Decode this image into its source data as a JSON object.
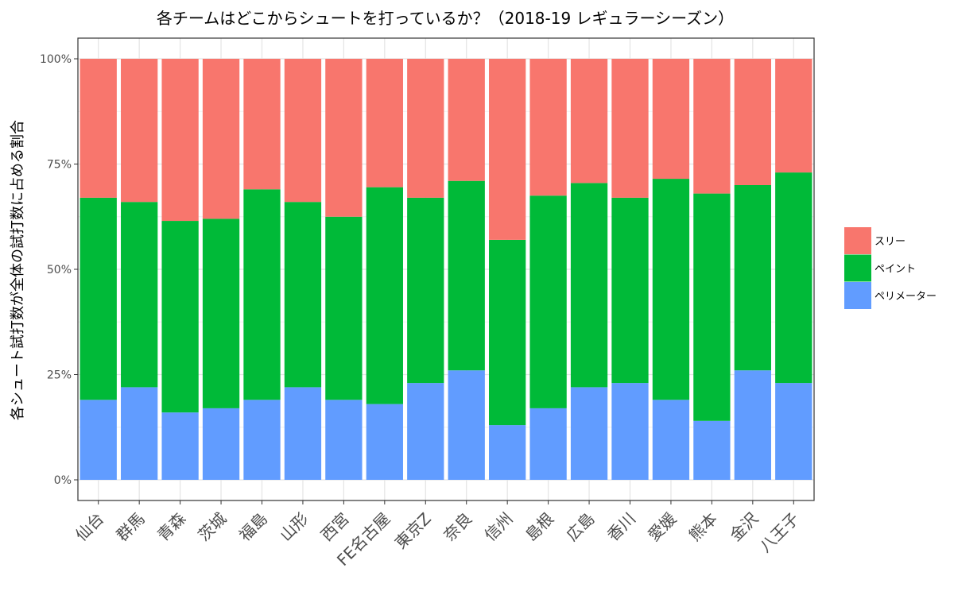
{
  "chart_data": {
    "type": "bar",
    "stacked": true,
    "title": "各チームはどこからシュートを打っているか？（2018-19 レギュラーシーズン）",
    "xlabel": "",
    "ylabel": "各シュート試打数が全体の試打数に占める割合",
    "ylim": [
      0,
      1
    ],
    "yticks": [
      0,
      0.25,
      0.5,
      0.75,
      1.0
    ],
    "yticklabels": [
      "0%",
      "25%",
      "50%",
      "75%",
      "100%"
    ],
    "categories": [
      "仙台",
      "群馬",
      "青森",
      "茨城",
      "福島",
      "山形",
      "西宮",
      "FE名古屋",
      "東京Z",
      "奈良",
      "信州",
      "島根",
      "広島",
      "香川",
      "愛媛",
      "熊本",
      "金沢",
      "八王子"
    ],
    "series": [
      {
        "name": "ペリメーター",
        "color": "#619CFF",
        "values": [
          0.19,
          0.22,
          0.16,
          0.17,
          0.19,
          0.22,
          0.19,
          0.18,
          0.23,
          0.26,
          0.13,
          0.17,
          0.22,
          0.23,
          0.19,
          0.14,
          0.26,
          0.23
        ]
      },
      {
        "name": "ペイント",
        "color": "#00BA38",
        "values": [
          0.48,
          0.44,
          0.455,
          0.45,
          0.5,
          0.44,
          0.435,
          0.515,
          0.44,
          0.45,
          0.44,
          0.505,
          0.485,
          0.44,
          0.525,
          0.54,
          0.44,
          0.5
        ]
      },
      {
        "name": "スリー",
        "color": "#F8766D",
        "values": [
          0.33,
          0.34,
          0.385,
          0.38,
          0.31,
          0.34,
          0.375,
          0.305,
          0.33,
          0.29,
          0.43,
          0.325,
          0.295,
          0.33,
          0.285,
          0.32,
          0.3,
          0.27
        ]
      }
    ],
    "legend": {
      "position": "right",
      "order": [
        "スリー",
        "ペイント",
        "ペリメーター"
      ]
    },
    "grid": true,
    "panel_border": true
  }
}
